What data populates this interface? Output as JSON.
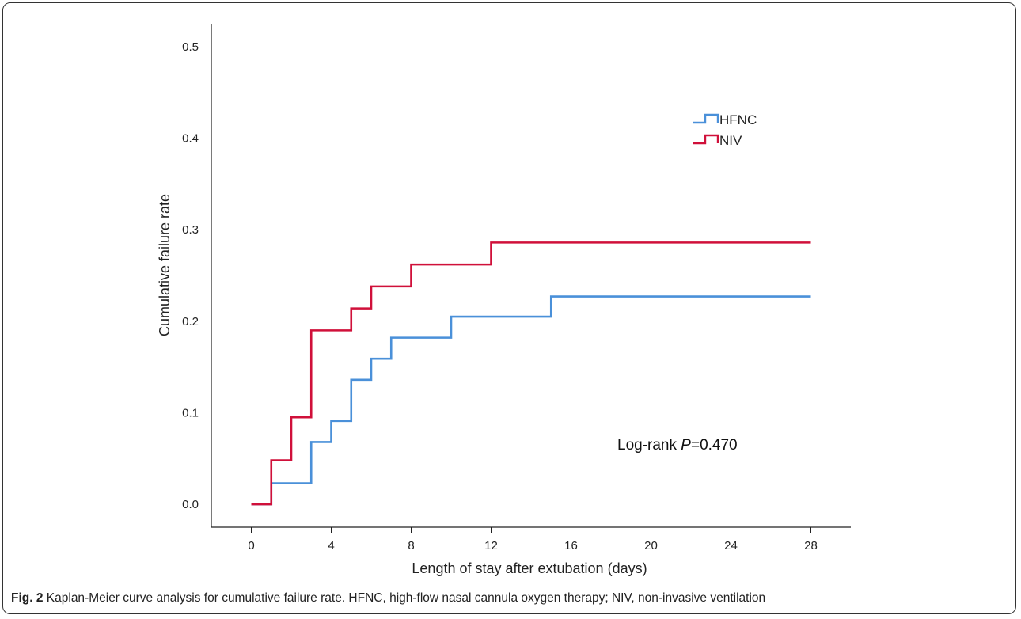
{
  "caption": {
    "label": "Fig. 2",
    "text": " Kaplan-Meier curve analysis for cumulative failure rate. HFNC, high-flow nasal cannula oxygen therapy; NIV, non-invasive ventilation"
  },
  "annotation": {
    "prefix": "Log-rank ",
    "italic": "P",
    "suffix": "=0.470"
  },
  "chart_data": {
    "type": "line",
    "step": true,
    "xlabel": "Length of stay after extubation (days)",
    "ylabel": "Cumulative failure rate",
    "xlim": [
      -2,
      30
    ],
    "ylim": [
      -0.025,
      0.525
    ],
    "xticks": [
      0,
      4,
      8,
      12,
      16,
      20,
      24,
      28
    ],
    "yticks": [
      0.0,
      0.1,
      0.2,
      0.3,
      0.4,
      0.5
    ],
    "ytick_labels": [
      "0.0",
      "0.1",
      "0.2",
      "0.3",
      "0.4",
      "0.5"
    ],
    "grid": false,
    "legend_position": "top-right",
    "series": [
      {
        "name": "HFNC",
        "color": "#4a90d9",
        "x": [
          0,
          1,
          3,
          4,
          5,
          6,
          7,
          10,
          15,
          28
        ],
        "y": [
          0.0,
          0.023,
          0.068,
          0.091,
          0.136,
          0.159,
          0.182,
          0.205,
          0.227,
          0.227
        ]
      },
      {
        "name": "NIV",
        "color": "#d0103a",
        "x": [
          0,
          1,
          2,
          3,
          5,
          6,
          8,
          12,
          28
        ],
        "y": [
          0.0,
          0.048,
          0.095,
          0.19,
          0.214,
          0.238,
          0.262,
          0.286,
          0.286
        ]
      }
    ]
  }
}
